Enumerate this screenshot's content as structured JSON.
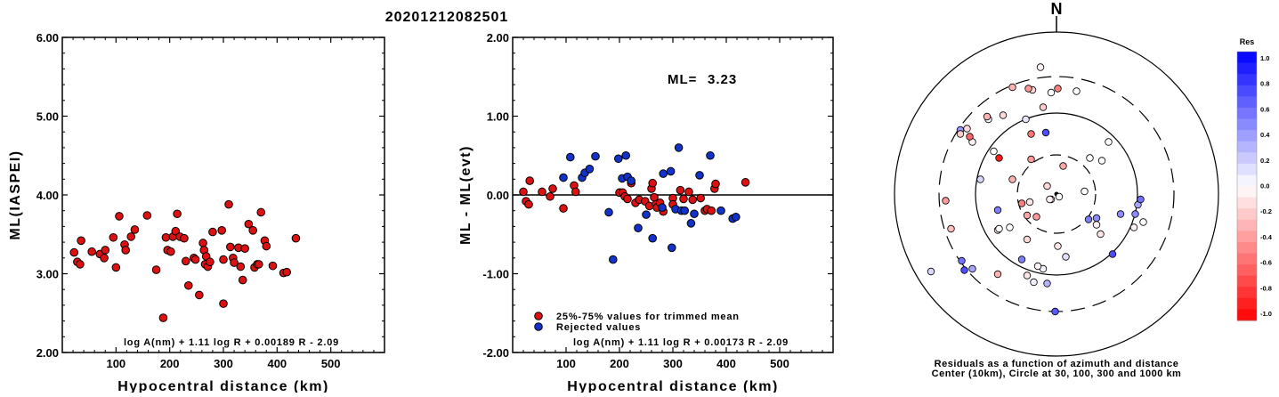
{
  "title": "20201212082501",
  "chart_data": [
    {
      "type": "scatter",
      "ylabel": "ML(IASPEI)",
      "xlabel": "Hypocentral distance (km)",
      "xlim": [
        0,
        600
      ],
      "ylim": [
        2.0,
        6.0
      ],
      "xticks": [
        "100",
        "200",
        "300",
        "400",
        "500"
      ],
      "yticks": [
        "2.00",
        "3.00",
        "4.00",
        "5.00",
        "6.00"
      ],
      "formula": "log A(nm) + 1.11 log R + 0.00189 R - 2.09",
      "color": "#dd1111",
      "points": [
        [
          22,
          3.27
        ],
        [
          28,
          3.15
        ],
        [
          33,
          3.12
        ],
        [
          35,
          3.42
        ],
        [
          55,
          3.28
        ],
        [
          70,
          3.25
        ],
        [
          78,
          3.2
        ],
        [
          80,
          3.3
        ],
        [
          95,
          3.46
        ],
        [
          100,
          3.08
        ],
        [
          106,
          3.73
        ],
        [
          116,
          3.37
        ],
        [
          118,
          3.3
        ],
        [
          128,
          3.47
        ],
        [
          135,
          3.56
        ],
        [
          158,
          3.74
        ],
        [
          175,
          3.05
        ],
        [
          188,
          2.44
        ],
        [
          193,
          3.46
        ],
        [
          196,
          3.3
        ],
        [
          202,
          3.28
        ],
        [
          206,
          3.47
        ],
        [
          211,
          3.54
        ],
        [
          214,
          3.76
        ],
        [
          219,
          3.47
        ],
        [
          227,
          3.45
        ],
        [
          230,
          3.16
        ],
        [
          235,
          2.85
        ],
        [
          245,
          3.2
        ],
        [
          248,
          3.18
        ],
        [
          255,
          2.73
        ],
        [
          262,
          3.39
        ],
        [
          264,
          3.3
        ],
        [
          266,
          3.12
        ],
        [
          268,
          3.22
        ],
        [
          271,
          3.09
        ],
        [
          275,
          3.15
        ],
        [
          280,
          3.53
        ],
        [
          297,
          3.55
        ],
        [
          300,
          3.18
        ],
        [
          300,
          2.62
        ],
        [
          310,
          3.88
        ],
        [
          313,
          3.34
        ],
        [
          318,
          3.2
        ],
        [
          320,
          3.14
        ],
        [
          328,
          3.33
        ],
        [
          332,
          3.09
        ],
        [
          336,
          2.92
        ],
        [
          340,
          3.32
        ],
        [
          347,
          3.63
        ],
        [
          355,
          3.55
        ],
        [
          358,
          3.08
        ],
        [
          363,
          3.12
        ],
        [
          366,
          3.12
        ],
        [
          370,
          3.78
        ],
        [
          377,
          3.42
        ],
        [
          380,
          3.35
        ],
        [
          392,
          3.1
        ],
        [
          412,
          3.01
        ],
        [
          418,
          3.02
        ],
        [
          435,
          3.45
        ]
      ]
    },
    {
      "type": "scatter",
      "ylabel": "ML - ML(evt)",
      "xlabel": "Hypocentral distance (km)",
      "xlim": [
        0,
        600
      ],
      "ylim": [
        -2.0,
        2.0
      ],
      "xticks": [
        "100",
        "200",
        "300",
        "400",
        "500"
      ],
      "yticks": [
        "-2.00",
        "-1.00",
        "0.00",
        "1.00",
        "2.00"
      ],
      "ml_label": "ML=",
      "ml_value": "3.23",
      "formula": "log A(nm) + 1.11 log R + 0.00173 R - 2.09",
      "legend": [
        "25%-75% values for trimmed mean",
        "Rejected values"
      ],
      "colors": {
        "trimmed": "#dd1111",
        "rejected": "#1133cc"
      },
      "series": [
        {
          "name": "25%-75% values for trimmed mean",
          "points": [
            [
              20,
              0.04
            ],
            [
              25,
              -0.08
            ],
            [
              30,
              -0.12
            ],
            [
              32,
              0.18
            ],
            [
              55,
              0.04
            ],
            [
              70,
              -0.02
            ],
            [
              75,
              0.08
            ],
            [
              95,
              -0.17
            ],
            [
              115,
              0.12
            ],
            [
              118,
              0.04
            ],
            [
              200,
              0.03
            ],
            [
              206,
              0.03
            ],
            [
              210,
              -0.02
            ],
            [
              215,
              -0.05
            ],
            [
              222,
              0.15
            ],
            [
              230,
              -0.1
            ],
            [
              237,
              -0.06
            ],
            [
              248,
              -0.08
            ],
            [
              256,
              -0.14
            ],
            [
              260,
              0.08
            ],
            [
              262,
              0.15
            ],
            [
              265,
              -0.03
            ],
            [
              268,
              -0.12
            ],
            [
              270,
              -0.16
            ],
            [
              276,
              -0.1
            ],
            [
              282,
              -0.21
            ],
            [
              300,
              -0.04
            ],
            [
              300,
              -0.12
            ],
            [
              314,
              0.06
            ],
            [
              320,
              -0.05
            ],
            [
              330,
              0.04
            ],
            [
              337,
              -0.06
            ],
            [
              352,
              -0.04
            ],
            [
              360,
              -0.2
            ],
            [
              364,
              -0.18
            ],
            [
              372,
              -0.2
            ],
            [
              378,
              0.08
            ],
            [
              380,
              0.14
            ],
            [
              436,
              0.16
            ]
          ]
        },
        {
          "name": "Rejected values",
          "points": [
            [
              95,
              0.22
            ],
            [
              108,
              0.48
            ],
            [
              130,
              0.22
            ],
            [
              135,
              0.28
            ],
            [
              144,
              0.33
            ],
            [
              155,
              0.49
            ],
            [
              180,
              -0.22
            ],
            [
              188,
              -0.82
            ],
            [
              198,
              0.46
            ],
            [
              205,
              0.21
            ],
            [
              212,
              0.5
            ],
            [
              215,
              0.23
            ],
            [
              222,
              0.18
            ],
            [
              235,
              -0.42
            ],
            [
              250,
              -0.25
            ],
            [
              262,
              -0.55
            ],
            [
              280,
              -0.16
            ],
            [
              282,
              0.27
            ],
            [
              296,
              0.3
            ],
            [
              298,
              -0.67
            ],
            [
              305,
              -0.18
            ],
            [
              311,
              0.6
            ],
            [
              316,
              -0.2
            ],
            [
              322,
              -0.2
            ],
            [
              334,
              -0.36
            ],
            [
              340,
              -0.24
            ],
            [
              350,
              0.25
            ],
            [
              370,
              0.5
            ],
            [
              390,
              -0.2
            ],
            [
              412,
              -0.3
            ],
            [
              418,
              -0.28
            ]
          ]
        }
      ]
    },
    {
      "type": "scatter",
      "north_label": "N",
      "colorbar_title": "Res",
      "colorbar_ticks": [
        "1.0",
        "0.8",
        "0.6",
        "0.4",
        "0.2",
        "0.0",
        "-0.2",
        "-0.4",
        "-0.6",
        "-0.8",
        "-1.0"
      ],
      "caption": [
        "Residuals as a function of azimuth and distance",
        "Center (10km), Circle at 30, 100, 300 and 1000 km"
      ],
      "points": [
        [
          -4,
          -4,
          0.0
        ],
        [
          -5,
          -4,
          -0.05
        ],
        [
          2,
          -2,
          0.0
        ],
        [
          -1,
          -88,
          0.65
        ],
        [
          -94,
          -58,
          0.15
        ],
        [
          7,
          -47,
          0.12
        ],
        [
          33,
          -30,
          -0.1
        ],
        [
          -44,
          -12,
          0.5
        ],
        [
          25,
          27,
          0.0
        ],
        [
          -22,
          -61,
          -0.1
        ],
        [
          -10,
          -56,
          0.05
        ],
        [
          1,
          -39,
          -0.1
        ],
        [
          -17,
          -66,
          0.05
        ],
        [
          -14,
          -54,
          -0.05
        ],
        [
          -44,
          -27,
          -0.1
        ],
        [
          -35,
          -25,
          0.0
        ],
        [
          42,
          -45,
          0.7
        ],
        [
          48,
          -15,
          0.45
        ],
        [
          21,
          2,
          0.0
        ],
        [
          30,
          -23,
          -0.05
        ],
        [
          -7,
          6,
          -0.15
        ],
        [
          -20,
          -6,
          -0.1
        ],
        [
          -33,
          11,
          -0.3
        ],
        [
          -19,
          26,
          -0.4
        ],
        [
          -43,
          27,
          -0.9
        ],
        [
          -19,
          45,
          -0.55
        ],
        [
          5,
          21,
          -0.35
        ],
        [
          -26,
          -49,
          0.5
        ],
        [
          -7,
          -67,
          0.3
        ],
        [
          -22,
          -34,
          -0.15
        ],
        [
          -22,
          -16,
          -0.35
        ],
        [
          -26,
          -7,
          -0.5
        ],
        [
          -43,
          -26,
          0.0
        ],
        [
          -69,
          -57,
          0.7
        ],
        [
          -63,
          -56,
          0.35
        ],
        [
          -71,
          -50,
          0.55
        ],
        [
          -44,
          -60,
          -0.3
        ],
        [
          -79,
          -26,
          -0.25
        ],
        [
          -15,
          -17,
          -0.4
        ],
        [
          30,
          -18,
          0.45
        ],
        [
          24,
          -19,
          0.5
        ],
        [
          61,
          -8,
          0.35
        ],
        [
          59,
          -15,
          0.45
        ],
        [
          65,
          -21,
          0.0
        ],
        [
          58,
          -25,
          -0.05
        ],
        [
          63,
          -4,
          0.55
        ],
        [
          -83,
          -5,
          -0.4
        ],
        [
          -63,
          39,
          -0.05
        ],
        [
          -10,
          65,
          -0.2
        ],
        [
          -18,
          78,
          -0.15
        ],
        [
          -12,
          95,
          -0.05
        ],
        [
          -4,
          76,
          0.0
        ],
        [
          1,
          79,
          -0.5
        ],
        [
          15,
          77,
          0.0
        ],
        [
          39,
          39,
          0.0
        ],
        [
          34,
          25,
          0.0
        ],
        [
          -51,
          56,
          0.05
        ],
        [
          -23,
          56,
          0.1
        ],
        [
          -72,
          48,
          0.4
        ],
        [
          -57,
          11,
          0.15
        ],
        [
          -47,
          32,
          0.0
        ],
        [
          -52,
          58,
          -0.3
        ],
        [
          -65,
          43,
          -0.6
        ],
        [
          -72,
          45,
          -0.2
        ],
        [
          -67,
          49,
          -0.15
        ],
        [
          -21,
          79,
          -0.4
        ],
        [
          -40,
          59,
          -0.15
        ],
        [
          -33,
          80,
          -0.3
        ],
        [
          -8,
          46,
          0.7
        ]
      ]
    }
  ]
}
